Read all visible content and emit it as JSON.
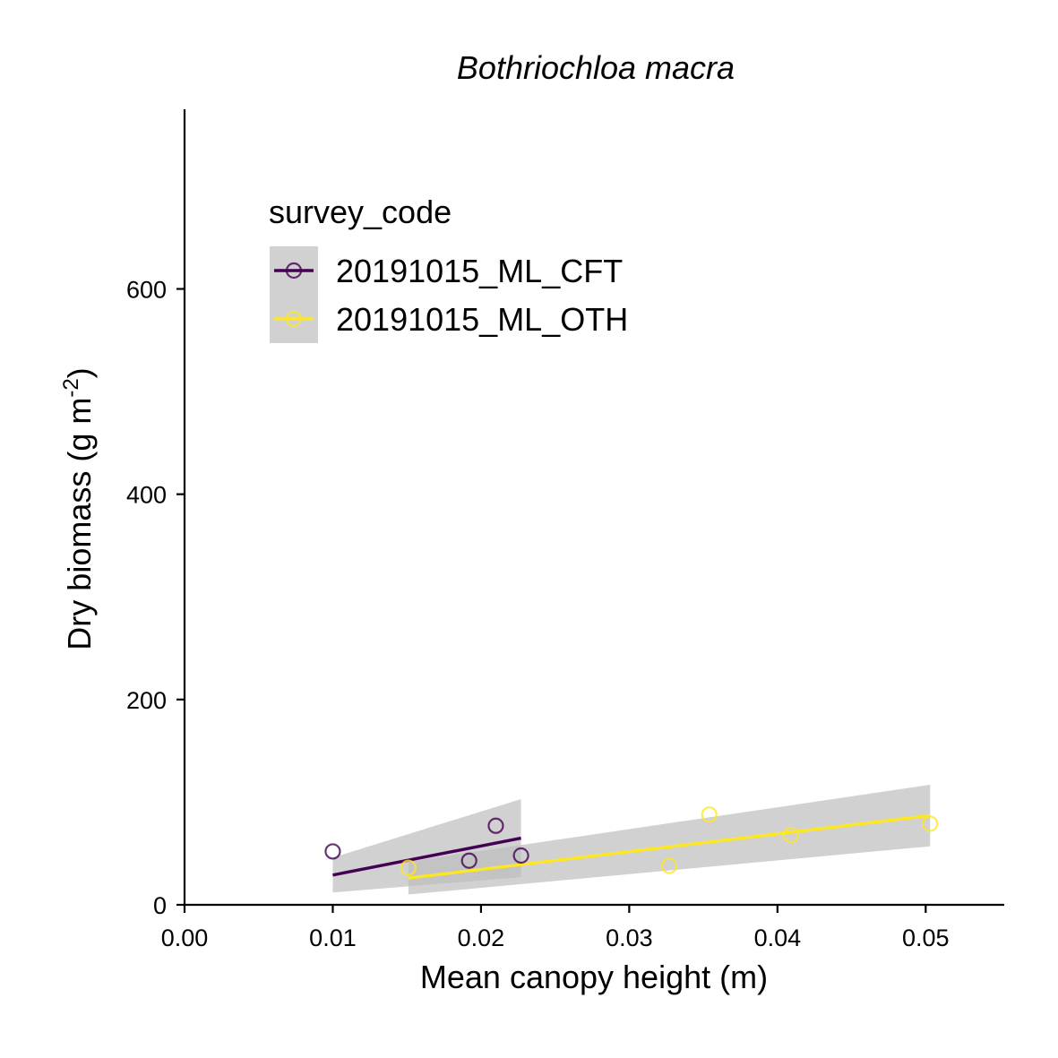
{
  "chart_data": {
    "type": "scatter",
    "title": "Bothriochloa macra",
    "xlabel": "Mean canopy height (m)",
    "ylabel_main": "Dry biomass (g m",
    "ylabel_sup": "-2",
    "ylabel_close": ")",
    "xlim": [
      0,
      0.0553
    ],
    "ylim": [
      0,
      775
    ],
    "x_ticks": [
      0.0,
      0.01,
      0.02,
      0.03,
      0.04,
      0.05
    ],
    "x_tick_labels": [
      "0.00",
      "0.01",
      "0.02",
      "0.03",
      "0.04",
      "0.05"
    ],
    "y_ticks": [
      0,
      200,
      400,
      600
    ],
    "y_tick_labels": [
      "0",
      "200",
      "400",
      "600"
    ],
    "grid": false,
    "legend": {
      "title": "survey_code",
      "placement": "top-left"
    },
    "series": [
      {
        "name": "20191015_ML_CFT",
        "color": "#440154",
        "points": [
          {
            "x": 0.01,
            "y": 52
          },
          {
            "x": 0.0192,
            "y": 43
          },
          {
            "x": 0.021,
            "y": 77
          },
          {
            "x": 0.0227,
            "y": 48
          }
        ],
        "fit": {
          "x": [
            0.01,
            0.0227
          ],
          "y": [
            29,
            65
          ]
        },
        "ribbon": {
          "x": [
            0.01,
            0.0227
          ],
          "lower": [
            12,
            27
          ],
          "upper": [
            46,
            103
          ]
        }
      },
      {
        "name": "20191015_ML_OTH",
        "color": "#FDE725",
        "points": [
          {
            "x": 0.0151,
            "y": 36
          },
          {
            "x": 0.0327,
            "y": 38
          },
          {
            "x": 0.0354,
            "y": 88
          },
          {
            "x": 0.0409,
            "y": 68
          },
          {
            "x": 0.0503,
            "y": 79
          }
        ],
        "fit": {
          "x": [
            0.0151,
            0.0503
          ],
          "y": [
            26,
            87
          ]
        },
        "ribbon": {
          "x": [
            0.0151,
            0.0503
          ],
          "lower": [
            10,
            57
          ],
          "upper": [
            42,
            117
          ]
        }
      }
    ],
    "ribbon_color": "#bdbdbd"
  }
}
